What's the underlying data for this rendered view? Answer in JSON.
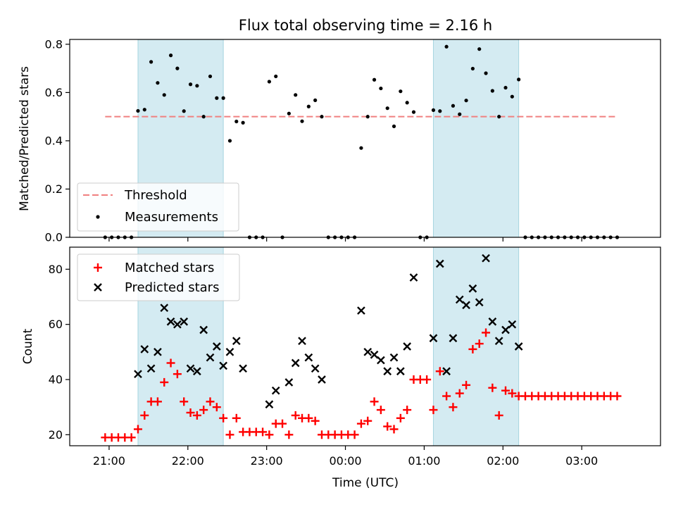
{
  "chart_data": [
    {
      "type": "scatter",
      "title": "Flux total observing time = 2.16 h",
      "xlabel": "",
      "ylabel": "Matched/Predicted stars",
      "ylim": [
        0,
        0.82
      ],
      "yticks": [
        "0.0",
        "0.2",
        "0.4",
        "0.6",
        "0.8"
      ],
      "ytick_values": [
        0,
        0.2,
        0.4,
        0.6,
        0.8
      ],
      "grid": false,
      "legend_position": "lower-left",
      "threshold": {
        "name": "Threshold",
        "y": 0.5,
        "x_range": [
          "20:57",
          "03:27"
        ],
        "color": "#f08080"
      },
      "shaded_intervals": [
        [
          "21:22",
          "22:27"
        ],
        [
          "01:07",
          "02:12"
        ]
      ],
      "shade_color": "#add8e6",
      "measurements": {
        "name": "Measurements",
        "color": "#000000",
        "x": [
          "20:57",
          "21:02",
          "21:07",
          "21:12",
          "21:17",
          "21:22",
          "21:27",
          "21:32",
          "21:37",
          "21:42",
          "21:47",
          "21:52",
          "21:57",
          "22:02",
          "22:07",
          "22:12",
          "22:17",
          "22:22",
          "22:27",
          "22:32",
          "22:37",
          "22:42",
          "22:47",
          "22:52",
          "22:57",
          "23:02",
          "23:07",
          "23:12",
          "23:17",
          "23:22",
          "23:27",
          "23:32",
          "23:37",
          "23:42",
          "23:47",
          "23:52",
          "23:57",
          "00:02",
          "00:07",
          "00:12",
          "00:17",
          "00:22",
          "00:27",
          "00:32",
          "00:37",
          "00:42",
          "00:47",
          "00:52",
          "00:57",
          "01:02",
          "01:07",
          "01:12",
          "01:17",
          "01:22",
          "01:27",
          "01:32",
          "01:37",
          "01:42",
          "01:47",
          "01:52",
          "01:57",
          "02:02",
          "02:07",
          "02:12",
          "02:17",
          "02:22",
          "02:27",
          "02:32",
          "02:37",
          "02:42",
          "02:47",
          "02:52",
          "02:57",
          "03:02",
          "03:07",
          "03:12",
          "03:17",
          "03:22",
          "03:27"
        ],
        "y": [
          0,
          0,
          0,
          0,
          0,
          0.524,
          0.529,
          0.727,
          0.64,
          0.59,
          0.754,
          0.7,
          0.523,
          0.634,
          0.628,
          0.5,
          0.667,
          0.577,
          0.577,
          0.4,
          0.48,
          0.475,
          0,
          0,
          0,
          0.645,
          0.667,
          0,
          0.513,
          0.59,
          0.481,
          0.542,
          0.568,
          0.5,
          0,
          0,
          0,
          0,
          0,
          0.37,
          0.5,
          0.653,
          0.617,
          0.535,
          0.46,
          0.605,
          0.558,
          0.519,
          0,
          0,
          0.527,
          0.523,
          0.79,
          0.545,
          0.51,
          0.567,
          0.699,
          0.78,
          0.68,
          0.607,
          0.5,
          0.62,
          0.583,
          0.654,
          0,
          0,
          0,
          0,
          0,
          0,
          0,
          0,
          0,
          0,
          0,
          0,
          0,
          0,
          0
        ]
      }
    },
    {
      "type": "scatter",
      "title": "",
      "xlabel": "Time (UTC)",
      "ylabel": "Count",
      "ylim": [
        16,
        88
      ],
      "yticks": [
        "20",
        "40",
        "60",
        "80"
      ],
      "ytick_values": [
        20,
        40,
        60,
        80
      ],
      "xticks": [
        "21:00",
        "22:00",
        "23:00",
        "00:00",
        "01:00",
        "02:00",
        "03:00"
      ],
      "xtick_times": [
        "21:00",
        "22:00",
        "23:00",
        "00:00",
        "01:00",
        "02:00",
        "03:00"
      ],
      "grid": false,
      "legend_position": "upper-left",
      "shaded_intervals": [
        [
          "21:22",
          "22:27"
        ],
        [
          "01:07",
          "02:12"
        ]
      ],
      "shade_color": "#add8e6",
      "series": [
        {
          "name": "Matched stars",
          "marker": "+",
          "color": "#ff0000",
          "x": [
            "20:57",
            "21:02",
            "21:07",
            "21:12",
            "21:17",
            "21:22",
            "21:27",
            "21:32",
            "21:37",
            "21:42",
            "21:47",
            "21:52",
            "21:57",
            "22:02",
            "22:07",
            "22:12",
            "22:17",
            "22:22",
            "22:27",
            "22:32",
            "22:37",
            "22:42",
            "22:47",
            "22:52",
            "22:57",
            "23:02",
            "23:07",
            "23:12",
            "23:17",
            "23:22",
            "23:27",
            "23:32",
            "23:37",
            "23:42",
            "23:47",
            "23:52",
            "23:57",
            "00:02",
            "00:07",
            "00:12",
            "00:17",
            "00:22",
            "00:27",
            "00:32",
            "00:37",
            "00:42",
            "00:47",
            "00:52",
            "00:57",
            "01:02",
            "01:07",
            "01:12",
            "01:17",
            "01:22",
            "01:27",
            "01:32",
            "01:37",
            "01:42",
            "01:47",
            "01:52",
            "01:57",
            "02:02",
            "02:07",
            "02:12",
            "02:17",
            "02:22",
            "02:27",
            "02:32",
            "02:37",
            "02:42",
            "02:47",
            "02:52",
            "02:57",
            "03:02",
            "03:07",
            "03:12",
            "03:17",
            "03:22",
            "03:27"
          ],
          "y": [
            19,
            19,
            19,
            19,
            19,
            22,
            27,
            32,
            32,
            39,
            46,
            42,
            32,
            28,
            27,
            29,
            32,
            30,
            26,
            20,
            26,
            21,
            21,
            21,
            21,
            20,
            24,
            24,
            20,
            27,
            26,
            26,
            25,
            20,
            20,
            20,
            20,
            20,
            20,
            24,
            25,
            32,
            29,
            23,
            22,
            26,
            29,
            40,
            40,
            40,
            29,
            43,
            34,
            30,
            35,
            38,
            51,
            53,
            57,
            37,
            27,
            36,
            35,
            34,
            34,
            34,
            34,
            34,
            34,
            34,
            34,
            34,
            34,
            34,
            34,
            34,
            34,
            34,
            34
          ]
        },
        {
          "name": "Predicted stars",
          "marker": "x",
          "color": "#000000",
          "x": [
            "21:22",
            "21:27",
            "21:32",
            "21:37",
            "21:42",
            "21:47",
            "21:52",
            "21:57",
            "22:02",
            "22:07",
            "22:12",
            "22:17",
            "22:22",
            "22:27",
            "22:32",
            "22:37",
            "22:42",
            "23:02",
            "23:07",
            "23:17",
            "23:22",
            "23:27",
            "23:32",
            "23:37",
            "23:42",
            "00:12",
            "00:17",
            "00:22",
            "00:27",
            "00:32",
            "00:37",
            "00:42",
            "00:47",
            "00:52",
            "01:07",
            "01:12",
            "01:17",
            "01:22",
            "01:27",
            "01:32",
            "01:37",
            "01:42",
            "01:47",
            "01:52",
            "01:57",
            "02:02",
            "02:07",
            "02:12"
          ],
          "y": [
            42,
            51,
            44,
            50,
            66,
            61,
            60,
            61,
            44,
            43,
            58,
            48,
            52,
            45,
            50,
            54,
            44,
            31,
            36,
            39,
            46,
            54,
            48,
            44,
            40,
            65,
            50,
            49,
            47,
            43,
            48,
            43,
            52,
            77,
            55,
            82,
            43,
            55,
            69,
            67,
            73,
            68,
            84,
            61,
            54,
            58,
            60,
            52
          ]
        }
      ]
    }
  ]
}
